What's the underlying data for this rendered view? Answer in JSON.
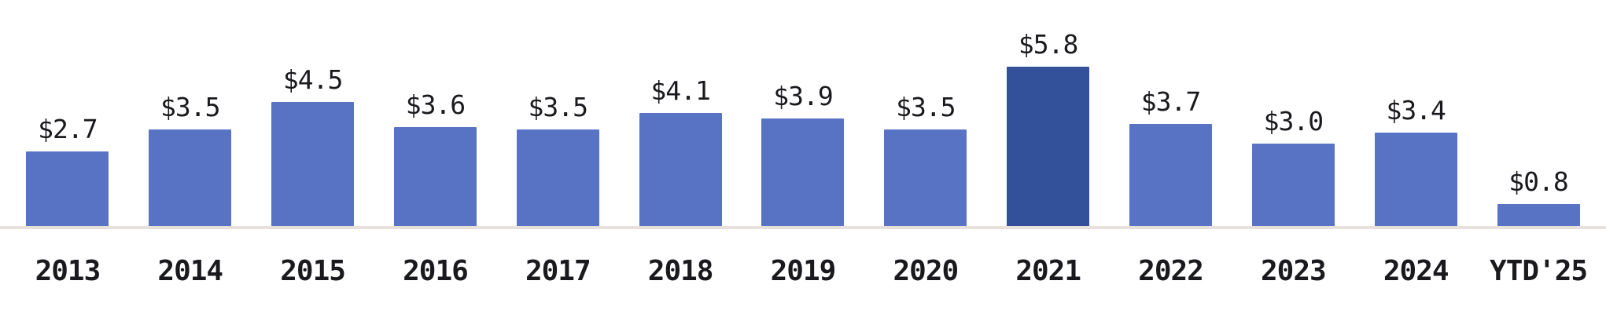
{
  "chart_data": {
    "type": "bar",
    "categories": [
      "2013",
      "2014",
      "2015",
      "2016",
      "2017",
      "2018",
      "2019",
      "2020",
      "2021",
      "2022",
      "2023",
      "2024",
      "YTD'25"
    ],
    "values": [
      2.7,
      3.5,
      4.5,
      3.6,
      3.5,
      4.1,
      3.9,
      3.5,
      5.8,
      3.7,
      3.0,
      3.4,
      0.8
    ],
    "value_labels": [
      "$2.7",
      "$3.5",
      "$4.5",
      "$3.6",
      "$3.5",
      "$4.1",
      "$3.9",
      "$3.5",
      "$5.8",
      "$3.7",
      "$3.0",
      "$3.4",
      "$0.8"
    ],
    "title": "",
    "xlabel": "",
    "ylabel": "",
    "ylim": [
      0,
      6
    ],
    "grid": false,
    "legend": false,
    "highlighted_category": "2021",
    "colors": {
      "bar": "#5873C4",
      "bar_highlight": "#33509B",
      "baseline": "#E7E0DB",
      "text": "#1A1A1E",
      "background": "#ffffff"
    }
  }
}
